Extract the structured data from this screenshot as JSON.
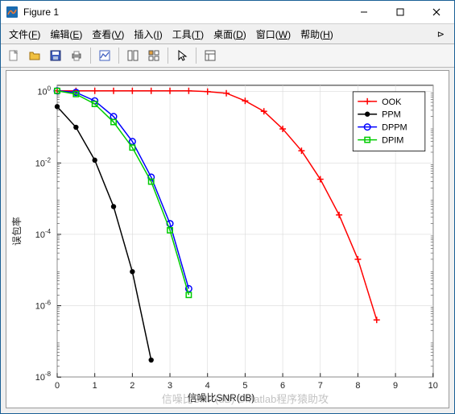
{
  "window": {
    "title": "Figure 1",
    "icon_colors": {
      "square": "#1a6bb0",
      "wave": "#f07830"
    }
  },
  "menubar": {
    "items": [
      {
        "label": "文件",
        "key": "F"
      },
      {
        "label": "编辑",
        "key": "E"
      },
      {
        "label": "查看",
        "key": "V"
      },
      {
        "label": "插入",
        "key": "I"
      },
      {
        "label": "工具",
        "key": "T"
      },
      {
        "label": "桌面",
        "key": "D"
      },
      {
        "label": "窗口",
        "key": "W"
      },
      {
        "label": "帮助",
        "key": "H"
      }
    ]
  },
  "toolbar": {
    "icons": [
      "new-file",
      "open-file",
      "save",
      "print",
      "sep",
      "edit-plot",
      "sep",
      "tile1",
      "tile2",
      "sep",
      "cursor",
      "sep",
      "layout"
    ]
  },
  "chart": {
    "type": "line",
    "xlabel": "信噪比SNR(dB)",
    "ylabel": "误包率",
    "xlim": [
      0,
      10
    ],
    "xticks": [
      0,
      1,
      2,
      3,
      4,
      5,
      6,
      7,
      8,
      9,
      10
    ],
    "ylim": [
      1e-08,
      1.5
    ],
    "yticks_exp": [
      0,
      -2,
      -4,
      -6,
      -8
    ],
    "grid_color": "#d9d9d9",
    "axis_color": "#222222",
    "background": "#ffffff",
    "watermark": "信噪比SNR(dB) ©Matlab程序猿助攻",
    "legend": {
      "position": "top-right",
      "items": [
        {
          "label": "OOK",
          "color": "#ff0000",
          "marker": "plus"
        },
        {
          "label": "PPM",
          "color": "#000000",
          "marker": "dot"
        },
        {
          "label": "DPPM",
          "color": "#0000ff",
          "marker": "circle"
        },
        {
          "label": "DPIM",
          "color": "#00cc00",
          "marker": "square"
        }
      ]
    },
    "series": {
      "OOK": {
        "color": "#ff0000",
        "marker": "plus",
        "lw": 1.5,
        "x": [
          0,
          0.5,
          1,
          1.5,
          2,
          2.5,
          3,
          3.5,
          4,
          4.5,
          5,
          5.5,
          6,
          6.5,
          7,
          7.5,
          8,
          8.5
        ],
        "y": [
          1.05,
          1.05,
          1.05,
          1.05,
          1.05,
          1.05,
          1.05,
          1.05,
          1.0,
          0.9,
          0.55,
          0.28,
          0.09,
          0.022,
          0.0035,
          0.00035,
          2e-05,
          4e-07
        ]
      },
      "PPM": {
        "color": "#000000",
        "marker": "dot",
        "lw": 1.5,
        "x": [
          0,
          0.5,
          1,
          1.5,
          2,
          2.5
        ],
        "y": [
          0.38,
          0.1,
          0.012,
          0.0006,
          9e-06,
          3e-08
        ]
      },
      "DPPM": {
        "color": "#0000ff",
        "marker": "circle",
        "lw": 1.5,
        "x": [
          0,
          0.5,
          1,
          1.5,
          2,
          2.5,
          3,
          3.5
        ],
        "y": [
          1.05,
          0.95,
          0.55,
          0.2,
          0.04,
          0.004,
          0.0002,
          3e-06
        ]
      },
      "DPIM": {
        "color": "#00cc00",
        "marker": "square",
        "lw": 1.5,
        "x": [
          0,
          0.5,
          1,
          1.5,
          2,
          2.5,
          3,
          3.5
        ],
        "y": [
          1.05,
          0.85,
          0.45,
          0.14,
          0.027,
          0.003,
          0.00013,
          2e-06
        ]
      }
    }
  }
}
